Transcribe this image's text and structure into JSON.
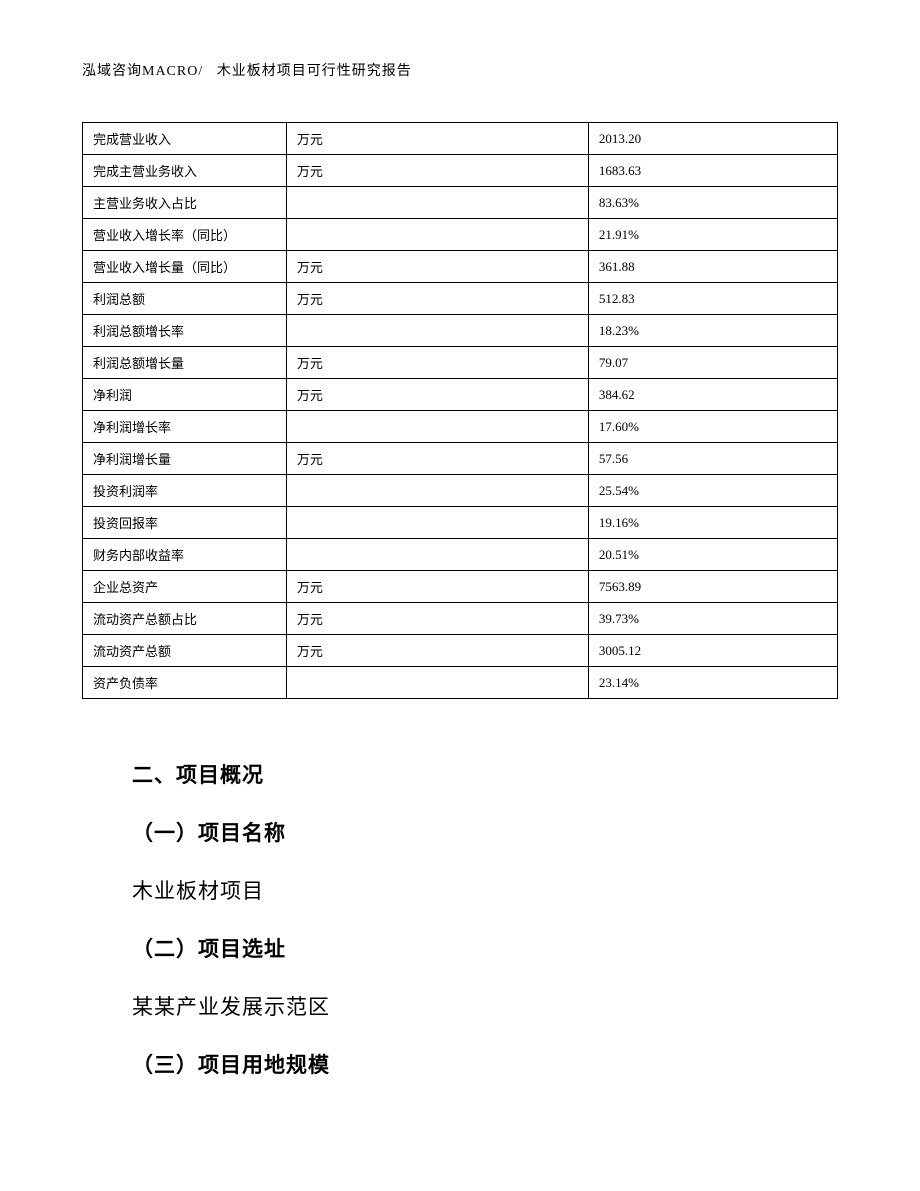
{
  "header": {
    "company": "泓域咨询MACRO/",
    "title": "木业板材项目可行性研究报告"
  },
  "table": {
    "rows": [
      {
        "label": "完成营业收入",
        "unit": "万元",
        "value": "2013.20"
      },
      {
        "label": "完成主营业务收入",
        "unit": "万元",
        "value": "1683.63"
      },
      {
        "label": "主营业务收入占比",
        "unit": "",
        "value": "83.63%"
      },
      {
        "label": "营业收入增长率（同比）",
        "unit": "",
        "value": "21.91%"
      },
      {
        "label": "营业收入增长量（同比）",
        "unit": "万元",
        "value": "361.88"
      },
      {
        "label": "利润总额",
        "unit": "万元",
        "value": "512.83"
      },
      {
        "label": "利润总额增长率",
        "unit": "",
        "value": "18.23%"
      },
      {
        "label": "利润总额增长量",
        "unit": "万元",
        "value": "79.07"
      },
      {
        "label": "净利润",
        "unit": "万元",
        "value": "384.62"
      },
      {
        "label": "净利润增长率",
        "unit": "",
        "value": "17.60%"
      },
      {
        "label": "净利润增长量",
        "unit": "万元",
        "value": "57.56"
      },
      {
        "label": "投资利润率",
        "unit": "",
        "value": "25.54%"
      },
      {
        "label": "投资回报率",
        "unit": "",
        "value": "19.16%"
      },
      {
        "label": "财务内部收益率",
        "unit": "",
        "value": "20.51%"
      },
      {
        "label": "企业总资产",
        "unit": "万元",
        "value": "7563.89"
      },
      {
        "label": "流动资产总额占比",
        "unit": "万元",
        "value": "39.73%"
      },
      {
        "label": "流动资产总额",
        "unit": "万元",
        "value": "3005.12"
      },
      {
        "label": "资产负债率",
        "unit": "",
        "value": "23.14%"
      }
    ]
  },
  "sections": {
    "main_heading": "二、项目概况",
    "sub1_heading": "（一）项目名称",
    "sub1_text": "木业板材项目",
    "sub2_heading": "（二）项目选址",
    "sub2_text": "某某产业发展示范区",
    "sub3_heading": "（三）项目用地规模"
  },
  "styles": {
    "page_bg": "#ffffff",
    "text_color": "#000000",
    "border_color": "#000000",
    "table_font_size": 13,
    "heading_font_size": 21,
    "body_font_size": 21
  }
}
